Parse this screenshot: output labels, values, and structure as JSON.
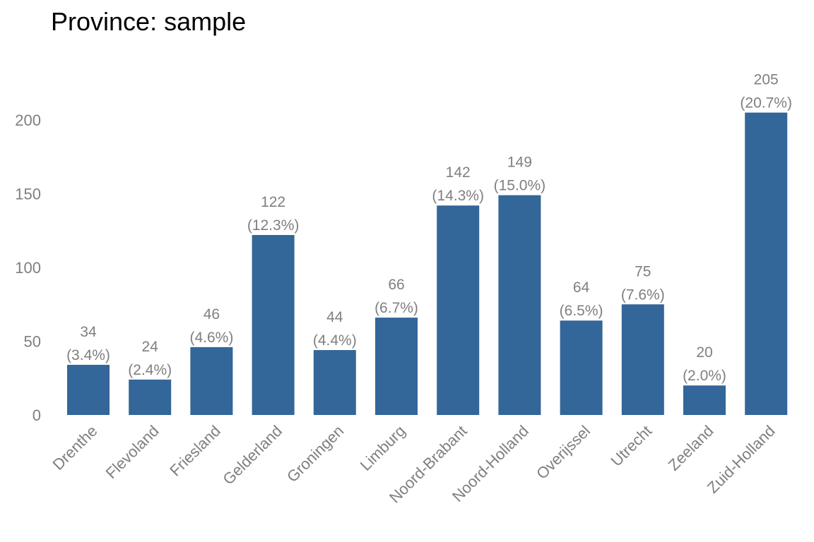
{
  "chart_data": {
    "type": "bar",
    "title": "Province: sample",
    "xlabel": "",
    "ylabel": "",
    "categories": [
      "Drenthe",
      "Flevoland",
      "Friesland",
      "Gelderland",
      "Groningen",
      "Limburg",
      "Noord-Brabant",
      "Noord-Holland",
      "Overijssel",
      "Utrecht",
      "Zeeland",
      "Zuid-Holland"
    ],
    "values": [
      34,
      24,
      46,
      122,
      44,
      66,
      142,
      149,
      64,
      75,
      20,
      205
    ],
    "percent_labels": [
      "(3.4%)",
      "(2.4%)",
      "(4.6%)",
      "(12.3%)",
      "(4.4%)",
      "(6.7%)",
      "(14.3%)",
      "(15.0%)",
      "(6.5%)",
      "(7.6%)",
      "(2.0%)",
      "(20.7%)"
    ],
    "yticks": [
      0,
      50,
      100,
      150,
      200
    ],
    "ylim": [
      0,
      205
    ],
    "grid": false,
    "legend": "none",
    "bar_color": "#336699",
    "label_color": "#7f7f7f"
  }
}
